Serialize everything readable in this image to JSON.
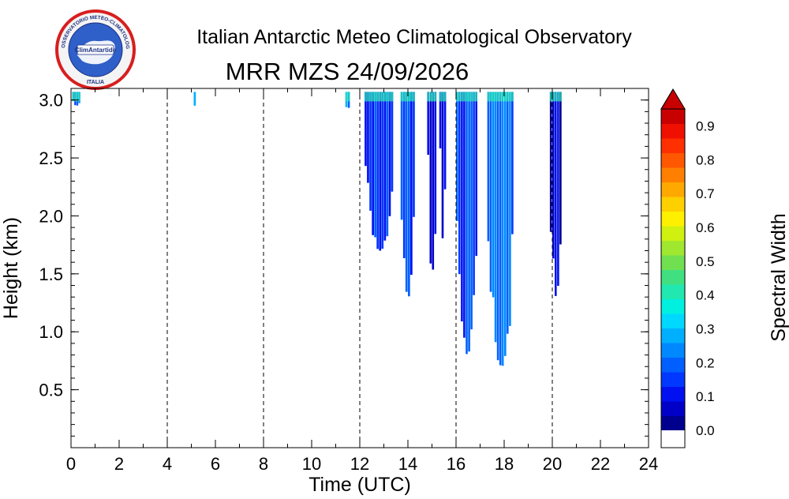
{
  "header": {
    "title": "Italian Antarctic Meteo Climatological Observatory",
    "subtitle": "MRR MZS 24/09/2026"
  },
  "logo": {
    "ring_text": "OSSERVATORIO METEO-CLIMATOLOGICO ANTARTICO",
    "center_text": "ClimAntartide",
    "bottom_text": "ITALIA"
  },
  "colorbar": {
    "label": "Spectral Width",
    "ticks": [
      "0.0",
      "0.1",
      "0.2",
      "0.3",
      "0.4",
      "0.5",
      "0.6",
      "0.7",
      "0.8",
      "0.9"
    ],
    "colors": [
      "#00008f",
      "#0000c8",
      "#0010f0",
      "#0038ff",
      "#0060ff",
      "#0088ff",
      "#00b0ff",
      "#00d8ff",
      "#00f0e0",
      "#20e8b0",
      "#40e080",
      "#70e050",
      "#a0e830",
      "#d0f010",
      "#fff000",
      "#ffd000",
      "#ffa800",
      "#ff8000",
      "#ff5800",
      "#ff3000",
      "#f01000",
      "#c80000"
    ]
  },
  "chart_data": {
    "type": "heatmap",
    "title": "MRR MZS 24/09/2026",
    "xlabel": "Time (UTC)",
    "ylabel": "Height (km)",
    "xlim": [
      0,
      24
    ],
    "ylim": [
      0,
      3.1
    ],
    "xticks": [
      "0",
      "2",
      "4",
      "6",
      "8",
      "10",
      "12",
      "14",
      "16",
      "18",
      "20",
      "22",
      "24"
    ],
    "yticks": [
      "0.5",
      "1.0",
      "1.5",
      "2.0",
      "2.5",
      "3.0"
    ],
    "ytick_values": [
      0.5,
      1.0,
      1.5,
      2.0,
      2.5,
      3.0
    ],
    "dashed_vlines": [
      4,
      8,
      12,
      16,
      20
    ],
    "colorbar_label": "Spectral Width",
    "colorbar_range": [
      0.0,
      0.95
    ],
    "echo_bands": [
      {
        "t_start": 0.05,
        "t_end": 0.4,
        "min_height_km": 2.95,
        "spectral_width": 0.2
      },
      {
        "t_start": 5.1,
        "t_end": 5.2,
        "min_height_km": 2.95,
        "spectral_width": 0.3
      },
      {
        "t_start": 11.4,
        "t_end": 11.6,
        "min_height_km": 2.85,
        "spectral_width": 0.25
      },
      {
        "t_start": 12.2,
        "t_end": 13.4,
        "min_height_km": 1.7,
        "spectral_width": 0.15
      },
      {
        "t_start": 13.7,
        "t_end": 14.3,
        "min_height_km": 1.3,
        "spectral_width": 0.15
      },
      {
        "t_start": 14.8,
        "t_end": 15.2,
        "min_height_km": 1.5,
        "spectral_width": 0.1
      },
      {
        "t_start": 15.3,
        "t_end": 15.6,
        "min_height_km": 1.8,
        "spectral_width": 0.1
      },
      {
        "t_start": 16.0,
        "t_end": 16.9,
        "min_height_km": 0.8,
        "spectral_width": 0.15
      },
      {
        "t_start": 17.3,
        "t_end": 18.4,
        "min_height_km": 0.7,
        "spectral_width": 0.2
      },
      {
        "t_start": 19.9,
        "t_end": 20.4,
        "min_height_km": 1.3,
        "spectral_width": 0.05
      }
    ]
  }
}
